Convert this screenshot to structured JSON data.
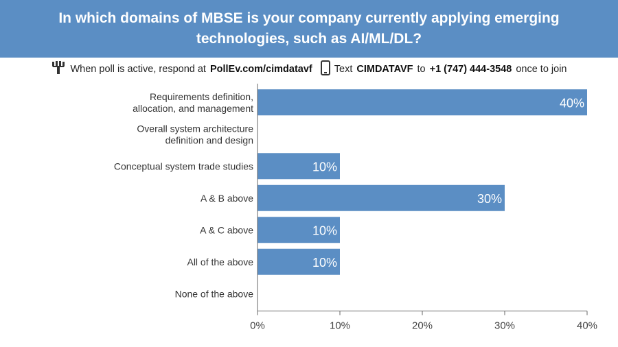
{
  "header": {
    "title_line1": "In which domains of MBSE is your company currently applying emerging",
    "title_line2": "technologies, such as AI/ML/DL?"
  },
  "instructions": {
    "poll_icon": "poll-everywhere-icon",
    "part1": "When poll is active, respond at",
    "url": "PollEv.com/cimdatavf",
    "phone_icon": "smartphone-icon",
    "part2": "Text",
    "keyword": "CIMDATAVF",
    "part3": "to",
    "number": "+1 (747) 444-3548",
    "part4": "once to join"
  },
  "chart_data": {
    "type": "bar",
    "orientation": "horizontal",
    "categories": [
      [
        "Requirements definition,",
        "allocation, and management"
      ],
      [
        "Overall system architecture",
        "definition and design"
      ],
      [
        "Conceptual system trade studies"
      ],
      [
        "A & B above"
      ],
      [
        "A & C above"
      ],
      [
        "All of the above"
      ],
      [
        "None of the above"
      ]
    ],
    "values": [
      40,
      0,
      10,
      30,
      10,
      10,
      0
    ],
    "value_labels": [
      "40%",
      "",
      "10%",
      "30%",
      "10%",
      "10%",
      ""
    ],
    "xlim": [
      0,
      40
    ],
    "x_ticks": [
      0,
      10,
      20,
      30,
      40
    ],
    "x_tick_labels": [
      "0%",
      "10%",
      "20%",
      "30%",
      "40%"
    ],
    "bar_color": "#5b8ec4",
    "grid": false
  }
}
